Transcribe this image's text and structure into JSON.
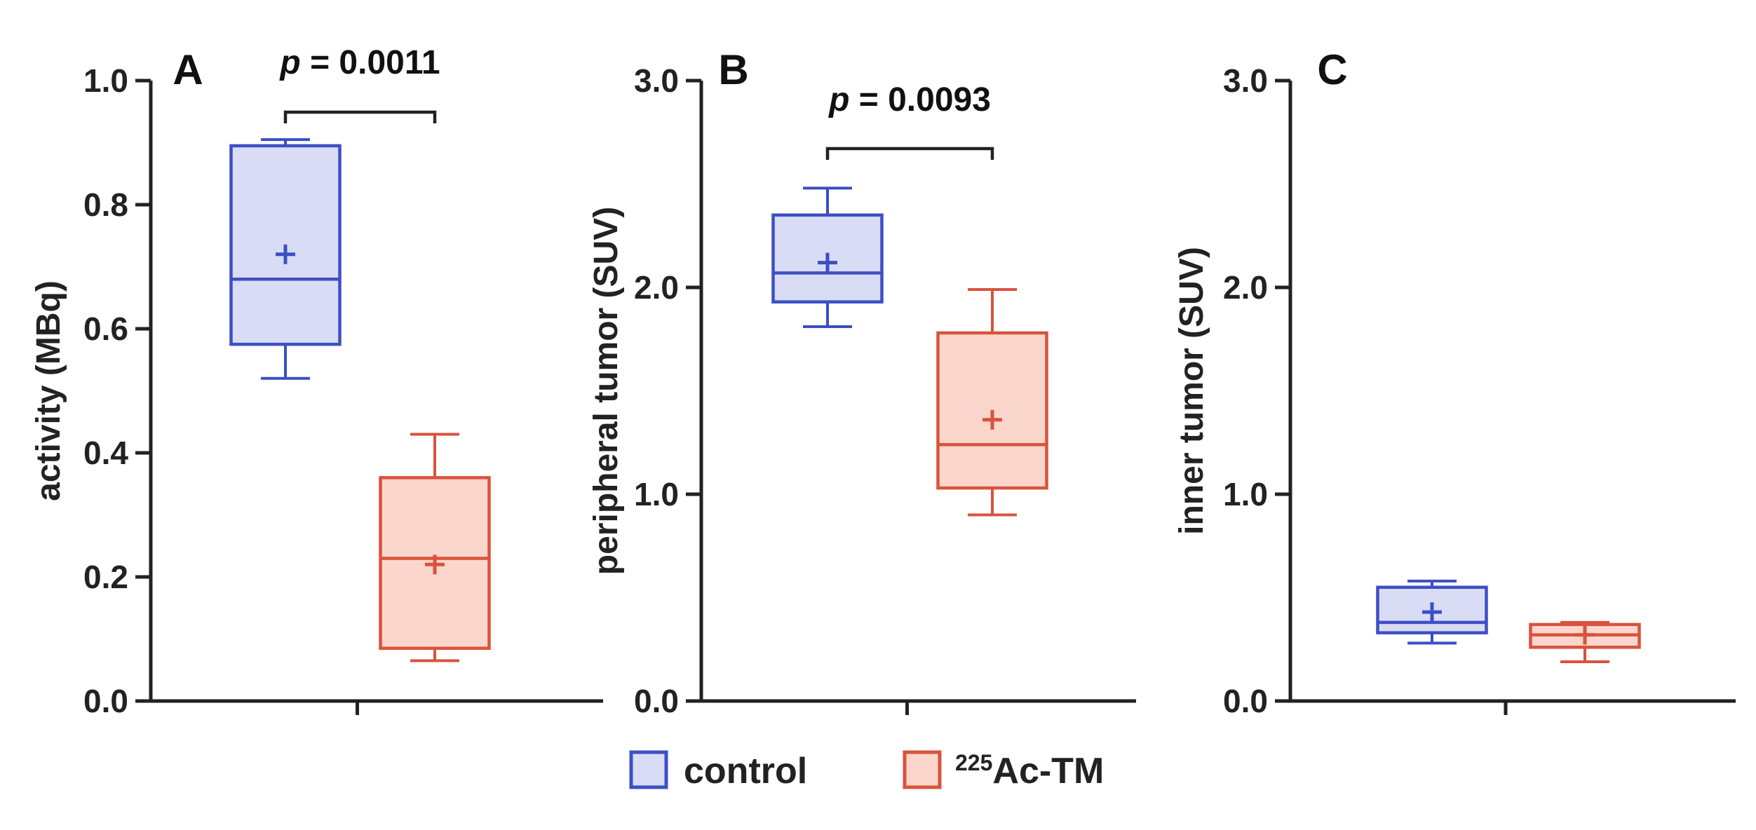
{
  "colors": {
    "control_stroke": "#3c4fc4",
    "control_fill": "#d9dcf5",
    "treated_stroke": "#d9533d",
    "treated_fill": "#fad6cd",
    "axis": "#222222"
  },
  "legend": {
    "items": [
      {
        "label": "control",
        "sup": "",
        "series": "control"
      },
      {
        "label": "Ac-TM",
        "sup": "225",
        "series": "treated"
      }
    ]
  },
  "chart_data": [
    {
      "type": "box",
      "panel": "A",
      "ylabel": "activity (MBq)",
      "ylim": [
        0,
        1.0
      ],
      "yticks": [
        "0.0",
        "0.2",
        "0.4",
        "0.6",
        "0.8",
        "1.0"
      ],
      "yticks_values": [
        0,
        0.2,
        0.4,
        0.6,
        0.8,
        1.0
      ],
      "categories": [
        "control",
        "225Ac-TM"
      ],
      "series": [
        {
          "name": "control",
          "min": 0.52,
          "q1": 0.575,
          "median": 0.68,
          "q3": 0.895,
          "max": 0.905,
          "mean": 0.72
        },
        {
          "name": "225Ac-TM",
          "min": 0.065,
          "q1": 0.085,
          "median": 0.23,
          "q3": 0.36,
          "max": 0.43,
          "mean": 0.22
        }
      ],
      "annotation": {
        "p_label": "p",
        "p_value": "= 0.0011"
      }
    },
    {
      "type": "box",
      "panel": "B",
      "ylabel": "peripheral tumor (SUV)",
      "ylim": [
        0,
        3.0
      ],
      "yticks": [
        "0.0",
        "1.0",
        "2.0",
        "3.0"
      ],
      "yticks_values": [
        0,
        1.0,
        2.0,
        3.0
      ],
      "categories": [
        "control",
        "225Ac-TM"
      ],
      "series": [
        {
          "name": "control",
          "min": 1.81,
          "q1": 1.93,
          "median": 2.07,
          "q3": 2.35,
          "max": 2.48,
          "mean": 2.12
        },
        {
          "name": "225Ac-TM",
          "min": 0.9,
          "q1": 1.03,
          "median": 1.24,
          "q3": 1.78,
          "max": 1.99,
          "mean": 1.36
        }
      ],
      "annotation": {
        "p_label": "p",
        "p_value": "= 0.0093"
      }
    },
    {
      "type": "box",
      "panel": "C",
      "ylabel": "inner tumor (SUV)",
      "ylim": [
        0,
        3.0
      ],
      "yticks": [
        "0.0",
        "1.0",
        "2.0",
        "3.0"
      ],
      "yticks_values": [
        0,
        1.0,
        2.0,
        3.0
      ],
      "categories": [
        "control",
        "225Ac-TM"
      ],
      "series": [
        {
          "name": "control",
          "min": 0.28,
          "q1": 0.33,
          "median": 0.38,
          "q3": 0.55,
          "max": 0.58,
          "mean": 0.43
        },
        {
          "name": "225Ac-TM",
          "min": 0.19,
          "q1": 0.26,
          "median": 0.32,
          "q3": 0.37,
          "max": 0.38,
          "mean": 0.32
        }
      ],
      "annotation": null
    }
  ]
}
